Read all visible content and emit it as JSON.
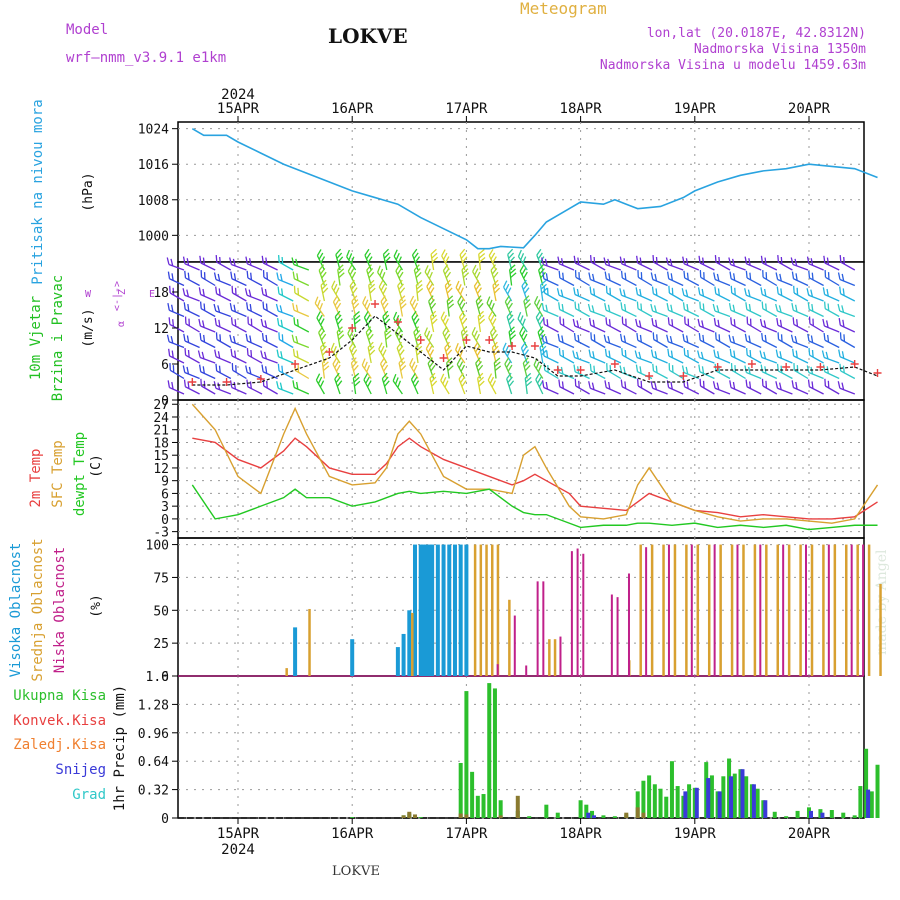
{
  "header": {
    "model_label": "Model",
    "model_name": "wrf—nmm_v3.9.1  e1km",
    "station": "LOKVE",
    "title": "Meteogram",
    "lonlat": "lon,lat (20.0187E, 42.8312N)",
    "altitude": "Nadmorska Visina 1350m",
    "model_altitude": "Nadmorska Visina u modelu 1459.63m",
    "credit": "made by Angel",
    "footer_station": "LOKVE"
  },
  "colors": {
    "pressure": "#29a3e0",
    "wind_label": "#22c022",
    "temp2m": "#e84040",
    "sfc": "#d8a030",
    "dewpt": "#22c822",
    "cloud_high": "#1a9ad6",
    "cloud_mid": "#d8a030",
    "cloud_low": "#c0208a",
    "rain_total": "#2cbf2c",
    "rain_conv": "#e84040",
    "rain_frozen": "#f08030",
    "snow": "#3a3ad8",
    "graupel": "#30c8c8",
    "title": "#e0b040",
    "model": "#b040d0"
  },
  "time_axis": {
    "year": "2024",
    "days": [
      "15APR",
      "16APR",
      "17APR",
      "18APR",
      "19APR",
      "20APR"
    ]
  },
  "chart_data": [
    {
      "type": "line",
      "panel": "pressure",
      "ylabel": "Pritisak na nivou mora",
      "units": "(hPa)",
      "yticks": [
        1000,
        1008,
        1016,
        1024
      ],
      "ylim": [
        994,
        1025.5
      ],
      "x_days": [
        14.6,
        14.7,
        14.9,
        15.0,
        15.2,
        15.4,
        15.6,
        15.8,
        16.0,
        16.2,
        16.4,
        16.6,
        16.8,
        17.0,
        17.1,
        17.2,
        17.3,
        17.5,
        17.6,
        17.7,
        17.9,
        18.0,
        18.2,
        18.3,
        18.4,
        18.5,
        18.7,
        18.9,
        19.0,
        19.2,
        19.4,
        19.6,
        19.8,
        20.0,
        20.2,
        20.4,
        20.6
      ],
      "series": [
        {
          "values": [
            1024,
            1022.5,
            1022.5,
            1021,
            1018.5,
            1016,
            1014,
            1012,
            1010,
            1008.5,
            1007,
            1004,
            1001.5,
            999,
            997,
            997,
            997.5,
            997.2,
            1000,
            1003,
            1006,
            1007.5,
            1007,
            1008,
            1007,
            1006,
            1006.5,
            1008.5,
            1010,
            1012,
            1013.5,
            1014.5,
            1015,
            1016,
            1015.5,
            1015,
            1013
          ]
        }
      ]
    },
    {
      "type": "barbs",
      "panel": "wind",
      "ylabel": "10m Vjetar",
      "ylabel2": "Brzina i Pravac",
      "units": "(m/s)",
      "direction_key": [
        "Z",
        "<-|->",
        "W",
        "E",
        "α"
      ],
      "yticks": [
        0,
        6,
        12,
        18
      ],
      "ylim": [
        0,
        23
      ],
      "x_days": [
        14.6,
        14.9,
        15.2,
        15.5,
        15.8,
        16.0,
        16.2,
        16.4,
        16.6,
        16.8,
        17.0,
        17.2,
        17.4,
        17.6,
        17.8,
        18.0,
        18.3,
        18.6,
        18.9,
        19.2,
        19.5,
        19.8,
        20.1,
        20.4,
        20.6
      ],
      "series": [
        {
          "values": [
            2.5,
            2.5,
            3,
            5,
            7,
            10,
            14,
            11,
            8,
            5,
            9,
            8,
            8,
            7,
            4,
            4,
            5,
            3,
            3,
            5,
            5,
            5,
            5,
            5.5,
            4
          ]
        },
        {
          "values": [
            3,
            3,
            3.5,
            6,
            8,
            12,
            16,
            13,
            10,
            7,
            10,
            10,
            9,
            9,
            5,
            5,
            6,
            4,
            4,
            5.5,
            6,
            5.5,
            5.5,
            6,
            4.5
          ]
        }
      ]
    },
    {
      "type": "line",
      "panel": "temperature",
      "ylabel": "2m Temp",
      "ylabel2": "SFC Temp",
      "ylabel3": "dewpt Temp",
      "units": "(C)",
      "yticks": [
        -3,
        0,
        3,
        6,
        9,
        12,
        15,
        18,
        21,
        24,
        27
      ],
      "ylim": [
        -4.5,
        28
      ],
      "x_days": [
        14.6,
        14.8,
        15.0,
        15.2,
        15.4,
        15.5,
        15.6,
        15.8,
        16.0,
        16.2,
        16.3,
        16.4,
        16.5,
        16.6,
        16.8,
        17.0,
        17.2,
        17.4,
        17.5,
        17.6,
        17.7,
        17.9,
        18.0,
        18.2,
        18.4,
        18.5,
        18.6,
        18.8,
        19.0,
        19.2,
        19.4,
        19.6,
        19.8,
        20.0,
        20.2,
        20.4,
        20.6
      ],
      "series": [
        {
          "name": "2m Temp",
          "values": [
            19,
            18,
            14,
            12,
            16,
            19,
            17,
            12,
            10.5,
            10.5,
            13,
            17,
            19,
            17,
            14,
            12,
            10,
            8,
            9,
            10.5,
            9,
            6,
            3,
            2.5,
            2,
            4,
            6,
            4,
            2,
            1.5,
            0.5,
            1,
            0.5,
            0,
            0,
            0.5,
            4
          ]
        },
        {
          "name": "SFC Temp",
          "values": [
            27,
            21,
            10,
            6,
            20,
            26,
            20,
            10,
            8,
            8.5,
            12,
            20,
            23,
            20,
            10,
            7,
            7,
            6,
            15,
            17,
            12,
            3,
            0.5,
            0,
            1,
            8,
            12,
            4,
            2,
            0.5,
            -0.5,
            0,
            0,
            -0.5,
            -1,
            0,
            8
          ]
        },
        {
          "name": "dewpt Temp",
          "values": [
            8,
            0,
            1,
            3,
            5,
            7,
            5,
            5,
            3,
            4,
            5,
            6,
            6.5,
            6,
            6.5,
            6,
            7,
            3,
            1.5,
            1,
            1,
            -1,
            -2,
            -1.5,
            -1.5,
            -1,
            -1,
            -1.5,
            -1,
            -2,
            -1.5,
            -2,
            -1.5,
            -2.5,
            -2,
            -1.5,
            -1.5
          ]
        }
      ]
    },
    {
      "type": "bar",
      "panel": "clouds",
      "ylabel": "Visoka Oblacnost",
      "ylabel2": "Srednja Oblacnost",
      "ylabel3": "Niska Oblacnost",
      "units": "(%)",
      "yticks": [
        0,
        25,
        50,
        75,
        100
      ],
      "ylim": [
        0,
        105
      ],
      "series": [
        {
          "name": "Visoka Oblacnost",
          "x_days": [
            15.5,
            16.0,
            16.4,
            16.45,
            16.5,
            16.55,
            16.6,
            16.62,
            16.65,
            16.68,
            16.7,
            16.75,
            16.8,
            16.85,
            16.9,
            16.95,
            17.0
          ],
          "values": [
            37,
            28,
            22,
            32,
            50,
            100,
            100,
            100,
            100,
            100,
            100,
            100,
            100,
            100,
            100,
            100,
            100
          ]
        },
        {
          "name": "Srednja Oblacnost",
          "x_days": [
            15.4,
            15.6,
            16.5,
            17.05,
            17.1,
            17.15,
            17.2,
            17.25,
            17.35,
            17.7,
            17.75,
            18.4,
            18.5,
            18.6,
            18.7,
            18.8,
            18.9,
            19.0,
            19.1,
            19.2,
            19.3,
            19.4,
            19.5,
            19.6,
            19.7,
            19.8,
            19.9,
            20.0,
            20.1,
            20.2,
            20.3,
            20.4,
            20.5,
            20.6
          ],
          "values": [
            6,
            51,
            48,
            100,
            100,
            100,
            100,
            100,
            58,
            28,
            28,
            12,
            100,
            100,
            100,
            100,
            100,
            100,
            100,
            100,
            100,
            100,
            100,
            100,
            100,
            100,
            100,
            100,
            100,
            100,
            100,
            100,
            100,
            70
          ]
        },
        {
          "name": "Niska Oblacnost",
          "x_days": [
            17.3,
            17.45,
            17.55,
            17.65,
            17.7,
            17.85,
            17.95,
            18.0,
            18.05,
            18.3,
            18.35,
            18.45,
            18.6,
            18.8,
            19.0,
            19.2,
            19.4,
            19.6,
            19.8,
            20.0,
            20.2,
            20.4,
            20.5
          ],
          "values": [
            9,
            46,
            8,
            72,
            72,
            30,
            95,
            97,
            93,
            62,
            60,
            78,
            98,
            100,
            100,
            100,
            100,
            100,
            100,
            100,
            100,
            100,
            100
          ]
        }
      ]
    },
    {
      "type": "bar",
      "panel": "precip",
      "ylabel": "1hr Precip (mm)",
      "legend": [
        "Ukupna Kisa",
        "Konvek.Kisa",
        "Zaledj.Kisa",
        "Snijeg",
        "Grad"
      ],
      "yticks": [
        0,
        0.32,
        0.64,
        0.96,
        1.28,
        1.6
      ],
      "ylim": [
        0,
        1.6
      ],
      "series": [
        {
          "name": "Ukupna Kisa",
          "x_days": [
            16.0,
            16.45,
            16.5,
            16.55,
            16.6,
            16.95,
            17.0,
            17.05,
            17.1,
            17.15,
            17.2,
            17.25,
            17.3,
            17.45,
            17.55,
            17.7,
            17.8,
            18.0,
            18.05,
            18.1,
            18.2,
            18.3,
            18.4,
            18.5,
            18.55,
            18.6,
            18.65,
            18.7,
            18.75,
            18.8,
            18.85,
            18.9,
            18.95,
            19.0,
            19.1,
            19.15,
            19.2,
            19.25,
            19.3,
            19.35,
            19.4,
            19.45,
            19.5,
            19.55,
            19.6,
            19.7,
            19.8,
            19.9,
            20.0,
            20.1,
            20.2,
            20.3,
            20.4,
            20.45,
            20.5,
            20.55,
            20.6
          ],
          "values": [
            0.01,
            0.03,
            0.05,
            0.02,
            0.01,
            0.62,
            1.43,
            0.52,
            0.25,
            0.27,
            1.52,
            1.46,
            0.2,
            0.08,
            0.02,
            0.15,
            0.06,
            0.2,
            0.15,
            0.08,
            0.03,
            0.02,
            0.04,
            0.3,
            0.42,
            0.48,
            0.38,
            0.33,
            0.24,
            0.64,
            0.36,
            0.25,
            0.38,
            0.34,
            0.63,
            0.48,
            0.3,
            0.47,
            0.67,
            0.5,
            0.55,
            0.47,
            0.38,
            0.33,
            0.2,
            0.07,
            0.02,
            0.08,
            0.12,
            0.1,
            0.09,
            0.06,
            0.03,
            0.36,
            0.78,
            0.3,
            0.6
          ]
        },
        {
          "name": "Snijeg",
          "x_days": [
            18.05,
            18.1,
            18.9,
            19.0,
            19.1,
            19.2,
            19.3,
            19.4,
            19.5,
            19.6,
            20.0,
            20.1,
            20.5
          ],
          "values": [
            0.06,
            0.03,
            0.3,
            0.34,
            0.45,
            0.3,
            0.47,
            0.55,
            0.38,
            0.2,
            0.08,
            0.06,
            0.32
          ]
        },
        {
          "name": "Zaledj.Kisa",
          "x_days": [
            16.45,
            16.5,
            16.55,
            16.95,
            17.0,
            17.3,
            17.45,
            18.4,
            18.5,
            18.55
          ],
          "values": [
            0.03,
            0.07,
            0.04,
            0.05,
            0.04,
            0.03,
            0.25,
            0.06,
            0.12,
            0.06
          ]
        }
      ]
    }
  ]
}
